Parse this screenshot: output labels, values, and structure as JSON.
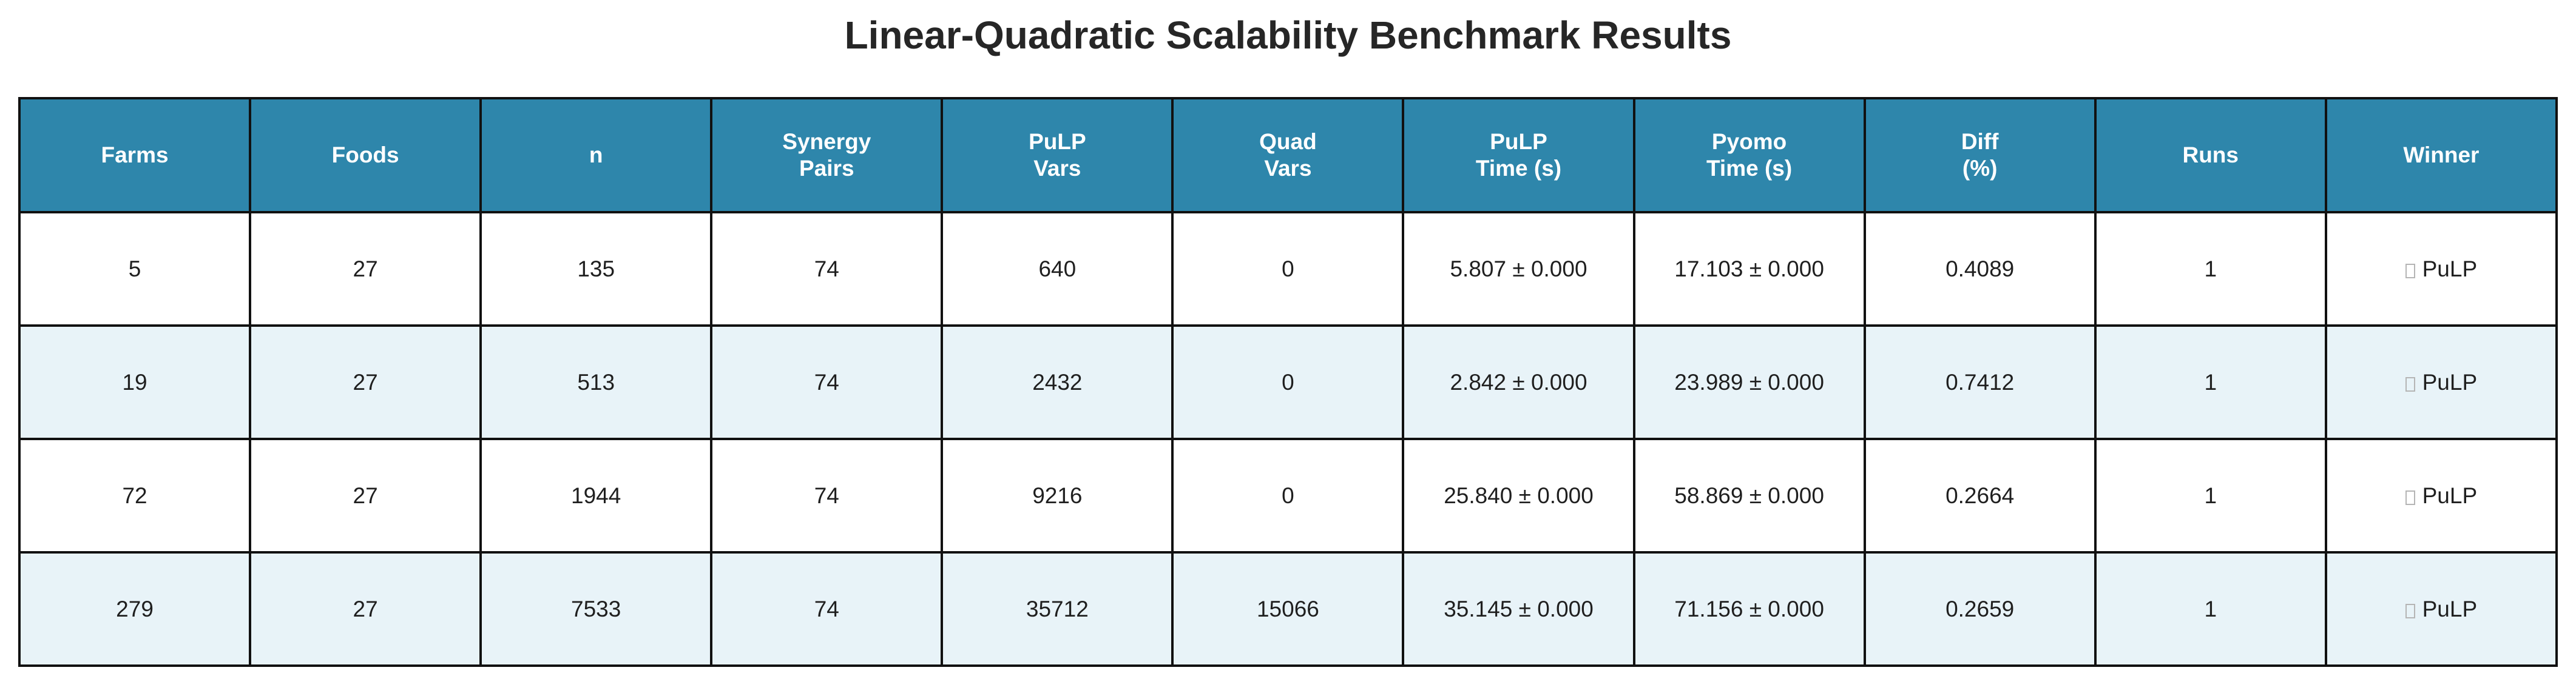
{
  "chart_data": {
    "type": "table",
    "title": "Linear-Quadratic Scalability Benchmark Results",
    "columns": [
      "Farms",
      "Foods",
      "n",
      "Synergy\nPairs",
      "PuLP\nVars",
      "Quad\nVars",
      "PuLP\nTime (s)",
      "Pyomo\nTime (s)",
      "Diff\n(%)",
      "Runs",
      "Winner"
    ],
    "rows": [
      [
        "5",
        "27",
        "135",
        "74",
        "640",
        "0",
        "5.807 ± 0.000",
        "17.103 ± 0.000",
        "0.4089",
        "1",
        "PuLP"
      ],
      [
        "19",
        "27",
        "513",
        "74",
        "2432",
        "0",
        "2.842 ± 0.000",
        "23.989 ± 0.000",
        "0.7412",
        "1",
        "PuLP"
      ],
      [
        "72",
        "27",
        "1944",
        "74",
        "9216",
        "0",
        "25.840 ± 0.000",
        "58.869 ± 0.000",
        "0.2664",
        "1",
        "PuLP"
      ],
      [
        "279",
        "27",
        "7533",
        "74",
        "35712",
        "15066",
        "35.145 ± 0.000",
        "71.156 ± 0.000",
        "0.2659",
        "1",
        "PuLP"
      ]
    ],
    "winner_icon": "missing-glyph-icon",
    "colors": {
      "header_background": "#2e86ab",
      "header_text": "#ffffff",
      "row_stripe": "#e8f3f8",
      "row_plain": "#ffffff",
      "border": "#111111"
    }
  }
}
